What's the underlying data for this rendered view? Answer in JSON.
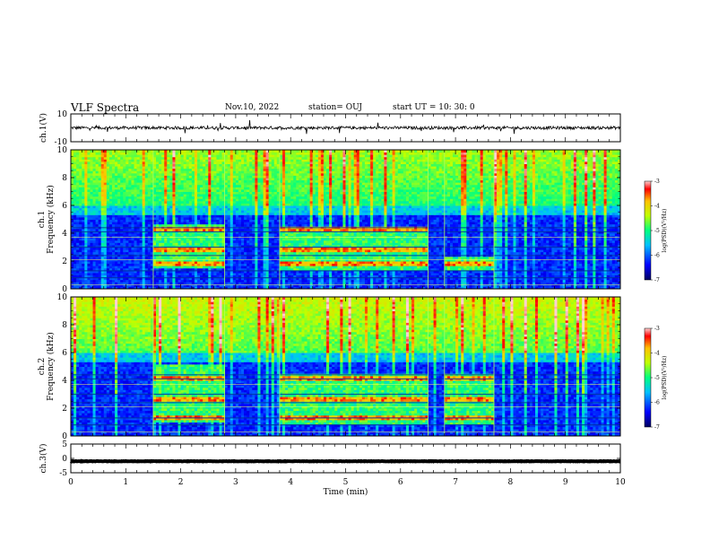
{
  "header": {
    "title": "VLF Spectra",
    "date": "Nov.10, 2022",
    "station": "station= OUJ",
    "start_ut": "start UT =  10: 30: 0"
  },
  "chart_data": [
    {
      "type": "line",
      "panel": "ch1-waveform",
      "ylabel": "ch.1(V)",
      "ylim": [
        -10,
        10
      ],
      "ytick_labels": [
        "10",
        "-10"
      ],
      "baseline": 0
    },
    {
      "type": "heatmap",
      "panel": "ch1-spectrogram",
      "ylabel": "ch.1\nFrequency (kHz)",
      "ylim": [
        0,
        10
      ],
      "ytick_labels": [
        "0",
        "2",
        "4",
        "6",
        "8",
        "10"
      ],
      "colorbar": {
        "label": "log(PSD)(V²/Hz)",
        "range": [
          -7,
          -3
        ],
        "tick_labels": [
          "-3",
          "-4",
          "-5",
          "-6",
          "-7"
        ]
      },
      "emission_bursts": [
        {
          "start_min": 1.5,
          "end_min": 2.8,
          "freq_khz": [
            1.5,
            4.7
          ]
        },
        {
          "start_min": 3.8,
          "end_min": 6.5,
          "freq_khz": [
            1.3,
            4.5
          ]
        },
        {
          "start_min": 6.8,
          "end_min": 7.7,
          "freq_khz": [
            1.3,
            2.4
          ]
        }
      ]
    },
    {
      "type": "heatmap",
      "panel": "ch2-spectrogram",
      "ylabel": "ch.2\nFrequency (kHz)",
      "ylim": [
        0,
        10
      ],
      "ytick_labels": [
        "0",
        "2",
        "4",
        "6",
        "8",
        "10"
      ],
      "colorbar": {
        "label": "log(PSD)(V²/Hz)",
        "range": [
          -7,
          -3
        ],
        "tick_labels": [
          "-3",
          "-4",
          "-5",
          "-6",
          "-7"
        ]
      },
      "emission_bursts": [
        {
          "start_min": 1.5,
          "end_min": 2.8,
          "freq_khz": [
            1.0,
            5.2
          ]
        },
        {
          "start_min": 3.8,
          "end_min": 6.5,
          "freq_khz": [
            0.8,
            4.5
          ]
        },
        {
          "start_min": 6.8,
          "end_min": 7.7,
          "freq_khz": [
            0.8,
            4.5
          ]
        }
      ]
    },
    {
      "type": "line",
      "panel": "ch3-waveform",
      "ylabel": "ch.3(V)",
      "ylim": [
        -5,
        5
      ],
      "ytick_labels": [
        "5",
        "0",
        "-5"
      ],
      "baseline": -1
    }
  ],
  "xaxis": {
    "label": "Time (min)",
    "range": [
      0,
      10
    ],
    "tick_labels": [
      "0",
      "1",
      "2",
      "3",
      "4",
      "5",
      "6",
      "7",
      "8",
      "9",
      "10"
    ]
  },
  "colors": {
    "background": "#ffffff",
    "spectrogram_low": "#000080",
    "spectrogram_high": "#ff0000",
    "burst_lines": "#ffff40"
  }
}
